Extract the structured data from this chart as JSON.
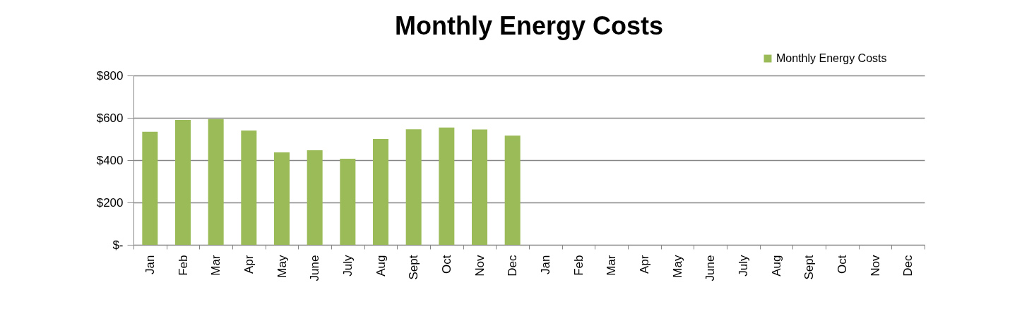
{
  "chart_data": {
    "type": "bar",
    "title": "Monthly Energy Costs",
    "categories": [
      "Jan",
      "Feb",
      "Mar",
      "Apr",
      "May",
      "June",
      "July",
      "Aug",
      "Sept",
      "Oct",
      "Nov",
      "Dec",
      "Jan",
      "Feb",
      "Mar",
      "Apr",
      "May",
      "June",
      "July",
      "Aug",
      "Sept",
      "Oct",
      "Nov",
      "Dec"
    ],
    "series": [
      {
        "name": "Monthly Energy Costs",
        "color": "#9bbb59",
        "values": [
          534,
          590,
          594,
          540,
          437,
          447,
          407,
          500,
          546,
          554,
          545,
          516,
          null,
          null,
          null,
          null,
          null,
          null,
          null,
          null,
          null,
          null,
          null,
          null
        ]
      }
    ],
    "ylim": [
      0,
      800
    ],
    "yticks": [
      {
        "value": 0,
        "label": "$-"
      },
      {
        "value": 200,
        "label": "$200"
      },
      {
        "value": 400,
        "label": "$400"
      },
      {
        "value": 600,
        "label": "$600"
      },
      {
        "value": 800,
        "label": "$800"
      }
    ],
    "grid": "y",
    "legend": "top right"
  }
}
